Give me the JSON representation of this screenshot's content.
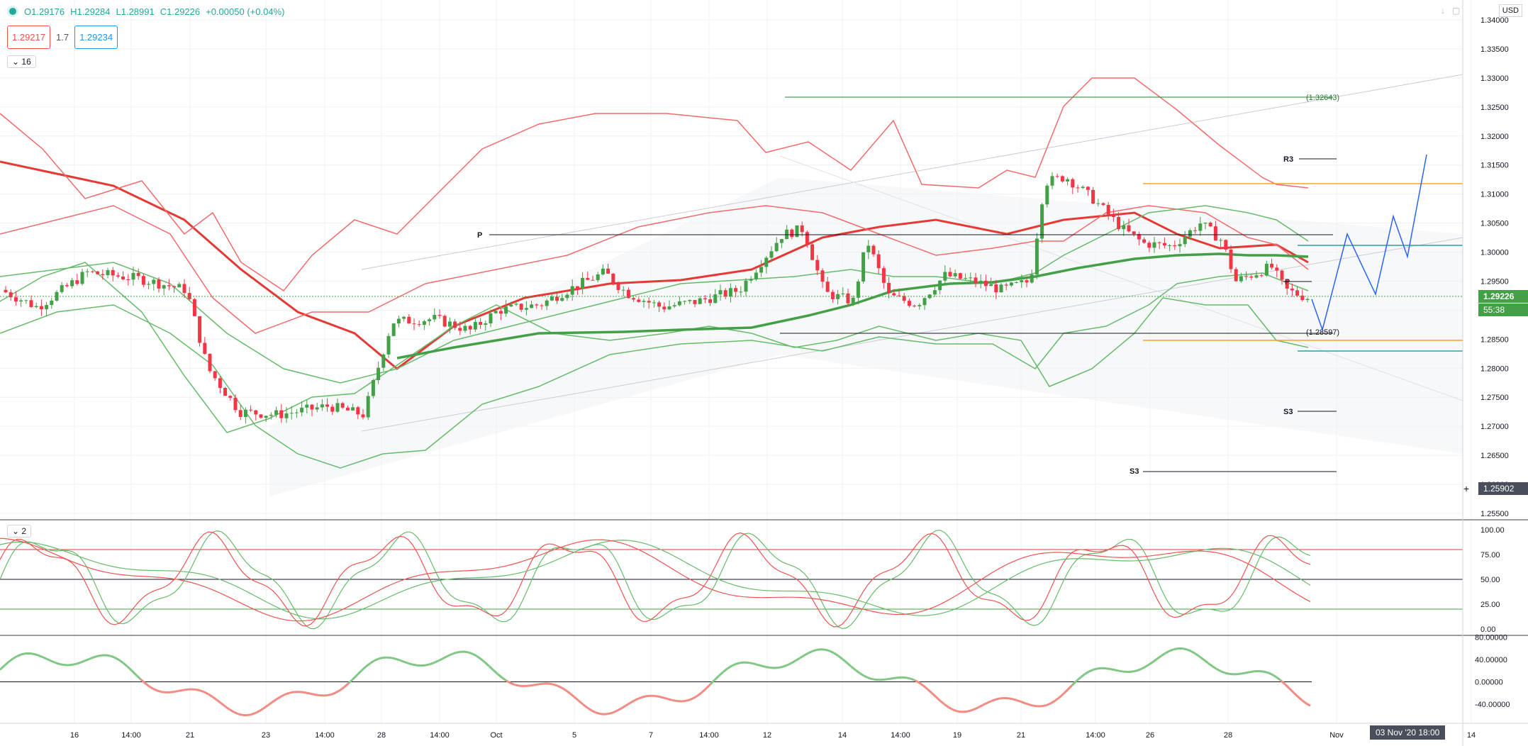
{
  "legend": {
    "open": "O1.29176",
    "high": "H1.29284",
    "low": "L1.28991",
    "close": "C1.29226",
    "change": "+0.00050 (+0.04%)"
  },
  "bid": "1.29217",
  "spread": "1.7",
  "ask": "1.29234",
  "indicator_collapse_main": "16",
  "indicator_collapse_osc": "2",
  "currency": "USD",
  "price_axis": [
    "1.34000",
    "1.33500",
    "1.33000",
    "1.32500",
    "1.32000",
    "1.31500",
    "1.31000",
    "1.30500",
    "1.30000",
    "1.29500",
    "1.29000",
    "1.28500",
    "1.28000",
    "1.27500",
    "1.27000",
    "1.26500",
    "1.26000",
    "1.25500"
  ],
  "last_price": "1.29226",
  "countdown": "55:38",
  "crosshair_price": "1.25902",
  "osc_axis": [
    "100.00",
    "75.00",
    "50.00",
    "25.00",
    "0.00"
  ],
  "mom_axis": [
    "80.00000",
    "40.00000",
    "0.00000",
    "-40.00000"
  ],
  "time_axis": [
    "16",
    "14:00",
    "21",
    "23",
    "14:00",
    "28",
    "14:00",
    "Oct",
    "5",
    "7",
    "14:00",
    "12",
    "14",
    "14:00",
    "19",
    "21",
    "14:00",
    "26",
    "28",
    "Nov",
    "14"
  ],
  "crosshair_time": "03 Nov '20   18:00",
  "annotations": {
    "level_top": "(1.32643)",
    "level_bottom": "(1.28597)",
    "pivot_p": "P",
    "pivot_p2": "P",
    "r3": "R3",
    "s3": "S3",
    "s3b": "S3"
  },
  "colors": {
    "up": "#26a69a",
    "candle_up": "#43a047",
    "down": "#f23645",
    "band_red": "#f26b6b",
    "band_green": "#66bb6a",
    "forecast": "#2962ff"
  }
}
